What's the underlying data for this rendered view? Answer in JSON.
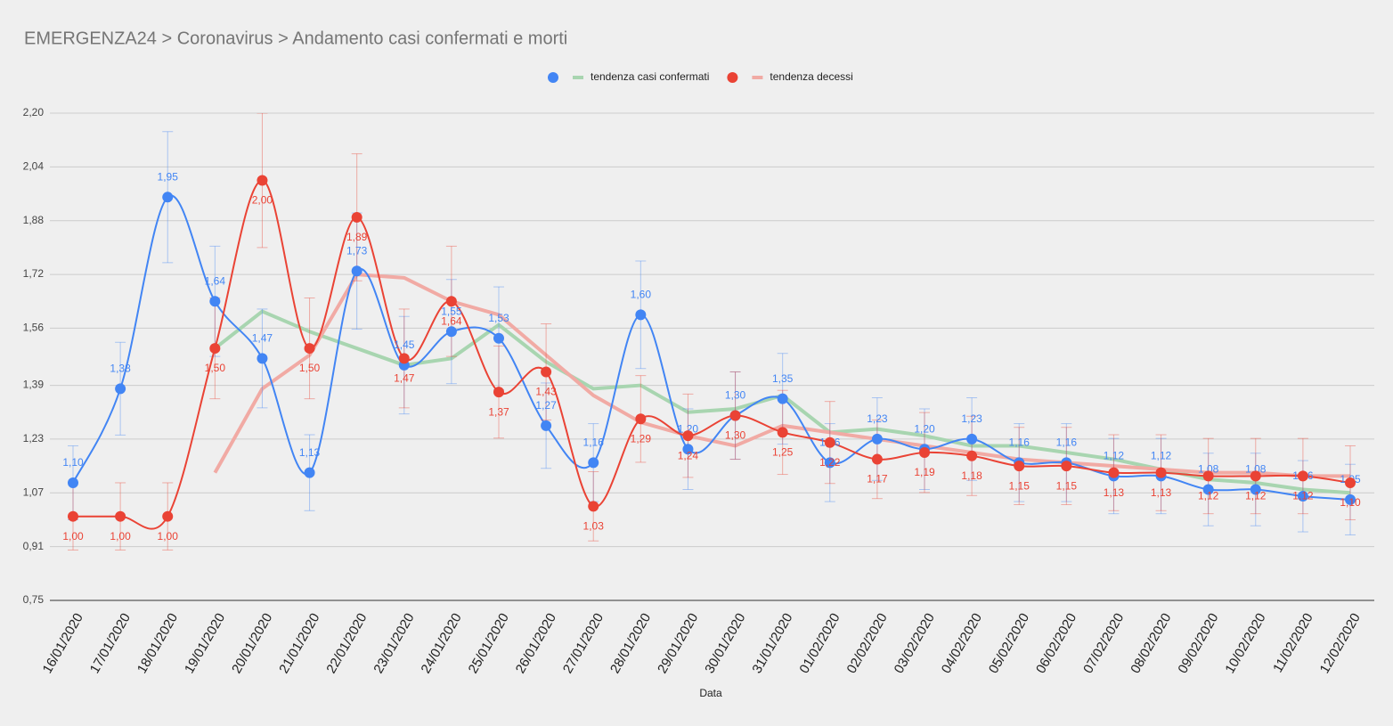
{
  "chart_data": {
    "type": "line",
    "title": "EMERGENZA24 > Coronavirus > Andamento casi confermati e morti",
    "x_label": "Data",
    "categories": [
      "16/01/2020",
      "17/01/2020",
      "18/01/2020",
      "19/01/2020",
      "20/01/2020",
      "21/01/2020",
      "22/01/2020",
      "23/01/2020",
      "24/01/2020",
      "25/01/2020",
      "26/01/2020",
      "27/01/2020",
      "28/01/2020",
      "29/01/2020",
      "30/01/2020",
      "31/01/2020",
      "01/02/2020",
      "02/02/2020",
      "03/02/2020",
      "04/02/2020",
      "05/02/2020",
      "06/02/2020",
      "07/02/2020",
      "08/02/2020",
      "09/02/2020",
      "10/02/2020",
      "11/02/2020",
      "12/02/2020"
    ],
    "ylim": [
      0.75,
      2.2
    ],
    "yticks": [
      {
        "value": 0.75,
        "label": "0,75"
      },
      {
        "value": 0.91,
        "label": "0,91"
      },
      {
        "value": 1.07,
        "label": "1,07"
      },
      {
        "value": 1.23,
        "label": "1,23"
      },
      {
        "value": 1.39,
        "label": "1,39"
      },
      {
        "value": 1.56,
        "label": "1,56"
      },
      {
        "value": 1.72,
        "label": "1,72"
      },
      {
        "value": 1.88,
        "label": "1,88"
      },
      {
        "value": 2.04,
        "label": "2,04"
      },
      {
        "value": 2.2,
        "label": "2,20"
      }
    ],
    "grid": true,
    "legend": "top",
    "series": [
      {
        "color": "#4285f4",
        "style": "points",
        "error_percent": 10,
        "values": [
          1.1,
          1.38,
          1.95,
          1.64,
          1.47,
          1.13,
          1.73,
          1.45,
          1.55,
          1.53,
          1.27,
          1.16,
          1.6,
          1.2,
          1.3,
          1.35,
          1.16,
          1.23,
          1.2,
          1.23,
          1.16,
          1.16,
          1.12,
          1.12,
          1.08,
          1.08,
          1.06,
          1.05
        ],
        "value_labels": [
          "1,10",
          "1,38",
          "1,95",
          "1,64",
          "1,47",
          "1,13",
          "1,73",
          "1,45",
          "1,55",
          "1,53",
          "1,27",
          "1,16",
          "1,60",
          "1,20",
          "1,30",
          "1,35",
          "1,16",
          "1,23",
          "1,20",
          "1,23",
          "1,16",
          "1,16",
          "1,12",
          "1,12",
          "1,08",
          "1,08",
          "1,06",
          "1,05"
        ]
      },
      {
        "name": "tendenza casi confermati",
        "color": "#a8d5b0",
        "style": "trend",
        "marker_of": 0,
        "values": [
          null,
          null,
          null,
          1.5,
          1.61,
          1.55,
          1.5,
          1.45,
          1.47,
          1.57,
          1.46,
          1.38,
          1.39,
          1.31,
          1.32,
          1.36,
          1.25,
          1.26,
          1.24,
          1.21,
          1.21,
          1.19,
          1.17,
          1.14,
          1.11,
          1.1,
          1.08,
          1.07
        ]
      },
      {
        "color": "#ea4335",
        "style": "points",
        "error_percent": 10,
        "values": [
          1.0,
          1.0,
          1.0,
          1.5,
          2.0,
          1.5,
          1.89,
          1.47,
          1.64,
          1.37,
          1.43,
          1.03,
          1.29,
          1.24,
          1.3,
          1.25,
          1.22,
          1.17,
          1.19,
          1.18,
          1.15,
          1.15,
          1.13,
          1.13,
          1.12,
          1.12,
          1.12,
          1.1
        ],
        "value_labels": [
          "1,00",
          "1,00",
          "1,00",
          "1,50",
          "2,00",
          "1,50",
          "1,89",
          "1,47",
          "1,64",
          "1,37",
          "1,43",
          "1,03",
          "1,29",
          "1,24",
          "1,30",
          "1,25",
          "1,22",
          "1,17",
          "1,19",
          "1,18",
          "1,15",
          "1,15",
          "1,13",
          "1,13",
          "1,12",
          "1,12",
          "1,12",
          "1,10"
        ]
      },
      {
        "name": "tendenza decessi",
        "color": "#f1aaa4",
        "style": "trend",
        "marker_of": 2,
        "values": [
          null,
          null,
          null,
          1.13,
          1.38,
          1.48,
          1.72,
          1.71,
          1.64,
          1.6,
          1.48,
          1.36,
          1.28,
          1.24,
          1.21,
          1.27,
          1.25,
          1.23,
          1.21,
          1.19,
          1.17,
          1.16,
          1.15,
          1.14,
          1.13,
          1.13,
          1.12,
          1.12
        ]
      }
    ]
  }
}
